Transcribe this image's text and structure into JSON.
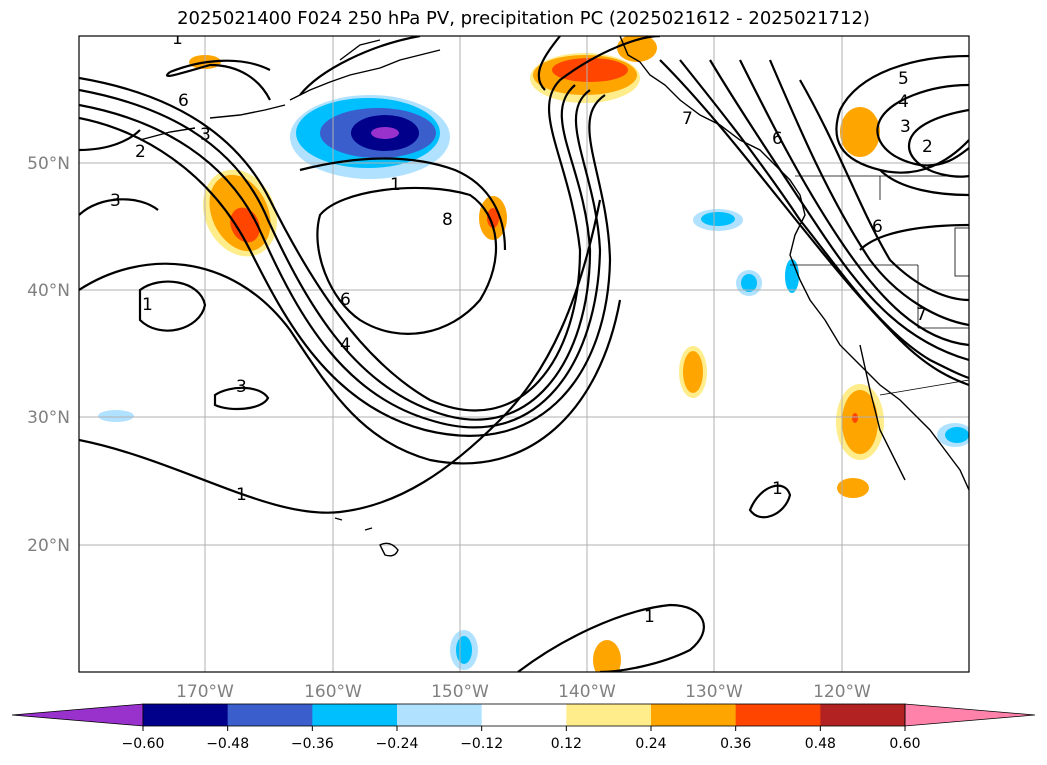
{
  "title": "2025021400 F024 250 hPa PV, precipitation PC (2025021612 - 2025021712)",
  "latitude_labels": [
    "50°N",
    "40°N",
    "30°N",
    "20°N"
  ],
  "longitude_labels": [
    "170°W",
    "160°W",
    "150°W",
    "140°W",
    "130°W",
    "120°W"
  ],
  "contour_labels": [
    "6",
    "3",
    "2",
    "3",
    "1",
    "6",
    "4",
    "3",
    "1",
    "8",
    "1",
    "5",
    "4",
    "3",
    "2",
    "6",
    "7",
    "6",
    "7",
    "1",
    "1",
    "1"
  ],
  "colorbar": {
    "ticks": [
      "−0.60",
      "−0.48",
      "−0.36",
      "−0.24",
      "−0.12",
      "0.12",
      "0.24",
      "0.36",
      "0.48",
      "0.60"
    ],
    "colors": [
      "#9932cc",
      "#00008b",
      "#3a5fcd",
      "#00bfff",
      "#b0e2ff",
      "#ffffff",
      "#ffec8b",
      "#ffa500",
      "#ff4500",
      "#b22222",
      "#ff82ab"
    ]
  }
}
